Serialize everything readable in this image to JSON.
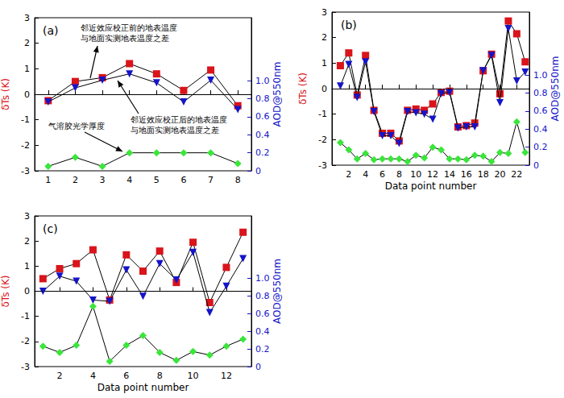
{
  "chart_data": [
    {
      "type": "line",
      "title": "(a)",
      "y_label": "δTs (K)",
      "y2_label": "AOD@550nm",
      "annotations": [
        "邻近效应校正前的地表温度\n与地面实测地表温度之差",
        "邻近效应校正后的地表温度\n与地面实测地表温度之差",
        "气溶胶光学厚度"
      ],
      "x": [
        1,
        2,
        3,
        4,
        5,
        6,
        7,
        8
      ],
      "xlim": [
        0.5,
        8.5
      ],
      "xticks": [
        1,
        2,
        3,
        4,
        5,
        6,
        7,
        8
      ],
      "ylim": [
        -3,
        3
      ],
      "yticks": [
        -3,
        -2,
        -1,
        0,
        1,
        2,
        3
      ],
      "y2lim": [
        0,
        1.7
      ],
      "y2ticks": [
        0,
        0.2,
        0.4,
        0.6,
        0.8,
        {
          "value": 1,
          "label": "1.0"
        }
      ],
      "hline": 0,
      "grid": false,
      "series": [
        {
          "color": "#d9141b",
          "marker": "square",
          "line_style": "solid",
          "values": [
            -0.25,
            0.5,
            0.65,
            1.2,
            0.8,
            0.15,
            0.95,
            -0.45
          ]
        },
        {
          "color": "#1414c8",
          "marker": "triangle-down",
          "line_style": "solid",
          "values": [
            -0.3,
            0.25,
            0.55,
            0.8,
            0.45,
            -0.3,
            0.55,
            -0.6
          ]
        },
        {
          "color": "#39e639",
          "marker": "diamond",
          "line_style": "solid",
          "axis": "y2",
          "values": [
            0.05,
            0.15,
            0.05,
            0.2,
            0.2,
            0.2,
            0.2,
            0.08
          ]
        }
      ]
    },
    {
      "type": "line",
      "title": "(b)",
      "x_label": "Data point number",
      "y_label": "δTs (K)",
      "y2_label": "AOD@550nm",
      "x": [
        1,
        2,
        3,
        4,
        5,
        6,
        7,
        8,
        9,
        10,
        11,
        12,
        13,
        14,
        15,
        16,
        17,
        18,
        19,
        20,
        21,
        22,
        23
      ],
      "xlim": [
        0,
        23.5
      ],
      "xticks": [
        2,
        4,
        6,
        8,
        10,
        12,
        14,
        16,
        18,
        20,
        22
      ],
      "ylim": [
        -3,
        3
      ],
      "yticks": [
        -3,
        -2,
        -1,
        0,
        1,
        2,
        3
      ],
      "y2lim": [
        0,
        1.7
      ],
      "y2ticks": [
        0,
        0.2,
        0.4,
        0.6,
        0.8,
        {
          "value": 1,
          "label": "1.0"
        }
      ],
      "hline": 0,
      "grid": false,
      "series": [
        {
          "color": "#d9141b",
          "marker": "square",
          "line_style": "solid",
          "values": [
            0.9,
            1.4,
            -0.25,
            1.3,
            -0.85,
            -1.75,
            -1.75,
            -2.05,
            -0.85,
            -0.8,
            -0.85,
            -0.6,
            -0.15,
            -0.1,
            -1.5,
            -1.45,
            -1.35,
            0.7,
            1.35,
            -0.2,
            2.65,
            2.15,
            1.05
          ]
        },
        {
          "color": "#1414c8",
          "marker": "triangle-down",
          "line_style": "solid",
          "values": [
            0.1,
            0.95,
            -0.35,
            1.05,
            -0.9,
            -1.85,
            -1.85,
            -2.15,
            -0.9,
            -0.95,
            -1.0,
            -1.2,
            -0.2,
            -0.15,
            -1.55,
            -1.5,
            -1.5,
            0.7,
            1.3,
            -0.55,
            2.35,
            0.3,
            0.65
          ]
        },
        {
          "color": "#39e639",
          "marker": "diamond",
          "line_style": "solid",
          "axis": "y2",
          "values": [
            0.25,
            0.17,
            0.07,
            0.13,
            0.06,
            0.07,
            0.07,
            0.07,
            0.04,
            0.11,
            0.08,
            0.2,
            0.17,
            0.07,
            0.07,
            0.06,
            0.11,
            0.1,
            0.04,
            0.14,
            0.13,
            0.48,
            0.14
          ]
        }
      ]
    },
    {
      "type": "line",
      "title": "(c)",
      "x_label": "Data point number",
      "y_label": "δTs (K)",
      "y2_label": "AOD@550nm",
      "x": [
        1,
        2,
        3,
        4,
        5,
        6,
        7,
        8,
        9,
        10,
        11,
        12,
        13
      ],
      "xlim": [
        0.5,
        13.5
      ],
      "xticks": [
        2,
        4,
        6,
        8,
        10,
        12
      ],
      "ylim": [
        -3,
        3
      ],
      "yticks": [
        -3,
        -2,
        -1,
        0,
        1,
        2,
        3
      ],
      "y2lim": [
        0,
        1.7
      ],
      "y2ticks": [
        0,
        0.2,
        0.4,
        0.6,
        0.8,
        {
          "value": 1,
          "label": "1.0"
        }
      ],
      "hline": 0,
      "grid": false,
      "series": [
        {
          "color": "#d9141b",
          "marker": "square",
          "line_style": "solid",
          "values": [
            0.5,
            0.9,
            1.1,
            1.65,
            -0.35,
            1.45,
            0.8,
            1.6,
            0.35,
            1.95,
            -0.45,
            0.95,
            2.35
          ]
        },
        {
          "color": "#1414c8",
          "marker": "triangle-down",
          "line_style": "solid",
          "values": [
            0.0,
            0.6,
            0.4,
            -0.35,
            -0.4,
            0.85,
            -0.2,
            1.1,
            0.45,
            1.55,
            -0.85,
            0.2,
            1.3
          ]
        },
        {
          "color": "#39e639",
          "marker": "diamond",
          "line_style": "solid",
          "axis": "y2",
          "values": [
            0.23,
            0.16,
            0.24,
            0.68,
            0.06,
            0.24,
            0.35,
            0.16,
            0.07,
            0.17,
            0.13,
            0.23,
            0.31
          ]
        }
      ]
    }
  ]
}
